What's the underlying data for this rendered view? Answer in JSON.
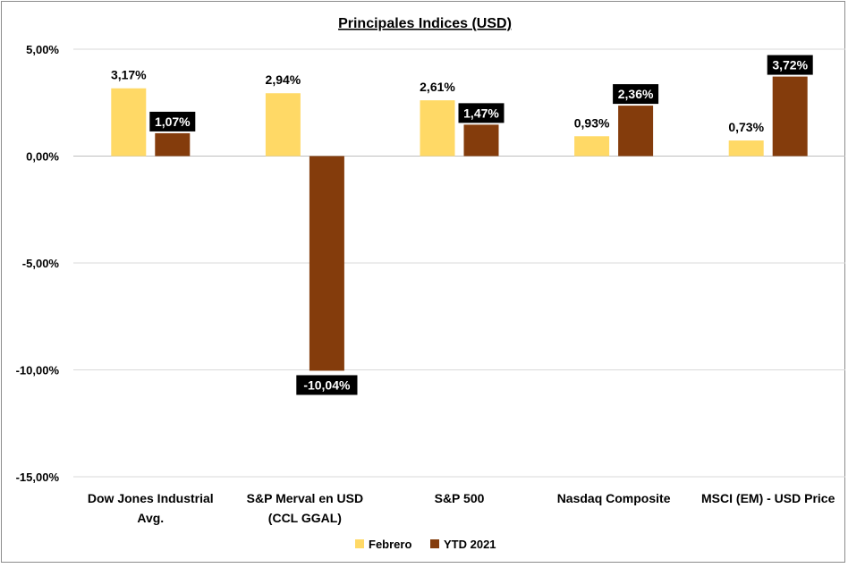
{
  "chart_data": {
    "type": "bar",
    "title": "Principales Indices (USD)",
    "categories": [
      [
        "Dow Jones Industrial",
        "Avg."
      ],
      [
        "S&P Merval en USD",
        "(CCL GGAL)"
      ],
      [
        "S&P 500"
      ],
      [
        "Nasdaq Composite"
      ],
      [
        "MSCI (EM) - USD Price"
      ]
    ],
    "series": [
      {
        "name": "Febrero",
        "color": "#ffd966",
        "values": [
          3.17,
          2.94,
          2.61,
          0.93,
          0.73
        ],
        "labels": [
          "3,17%",
          "2,94%",
          "2,61%",
          "0,93%",
          "0,73%"
        ],
        "label_style": "plain"
      },
      {
        "name": "YTD 2021",
        "color": "#843c0c",
        "values": [
          1.07,
          -10.04,
          1.47,
          2.36,
          3.72
        ],
        "labels": [
          "1,07%",
          "-10,04%",
          "1,47%",
          "2,36%",
          "3,72%"
        ],
        "label_style": "boxed"
      }
    ],
    "ylim": [
      -15,
      5
    ],
    "yticks": [
      5,
      0,
      -5,
      -10,
      -15
    ],
    "ytick_labels": [
      "5,00%",
      "0,00%",
      "-5,00%",
      "-10,00%",
      "-15,00%"
    ],
    "grid": true,
    "legend_position": "bottom"
  }
}
